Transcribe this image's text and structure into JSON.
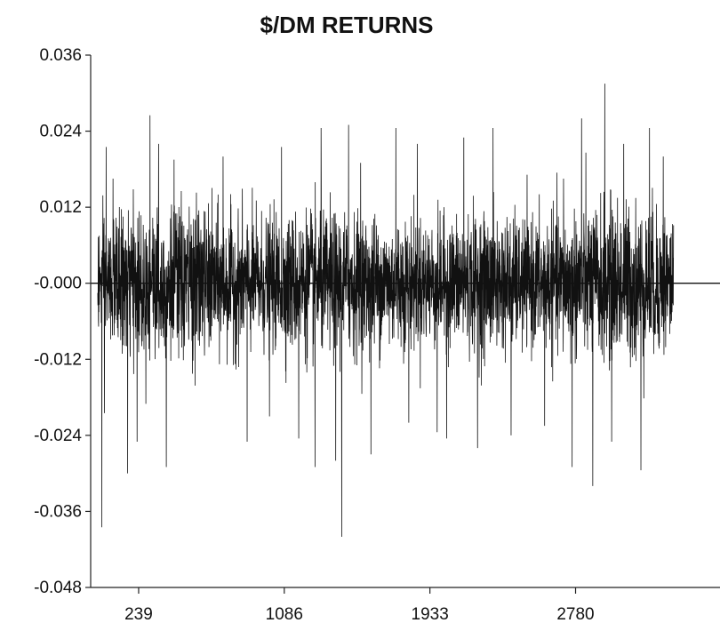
{
  "chart_data": {
    "type": "line",
    "title": "$/DM RETURNS",
    "xlabel": "",
    "ylabel": "",
    "x_ticks": [
      239,
      1086,
      1933,
      2780
    ],
    "x_tick_labels": [
      "239",
      "1086",
      "1933",
      "2780"
    ],
    "y_ticks": [
      0.036,
      0.024,
      0.012,
      0.0,
      -0.012,
      -0.024,
      -0.036,
      -0.048
    ],
    "y_tick_labels": [
      "0.036",
      "0.024",
      "0.012",
      "-0.000",
      "-0.012",
      "-0.024",
      "-0.036",
      "-0.048"
    ],
    "xlim": [
      -40,
      3620
    ],
    "ylim": [
      -0.048,
      0.036
    ],
    "grid": false,
    "legend": "none",
    "series": [
      {
        "n_observations": 3350,
        "x_start": 1,
        "x_end": 3350,
        "volatility_profile": [
          [
            1,
            0.0045
          ],
          [
            250,
            0.0058
          ],
          [
            500,
            0.0062
          ],
          [
            750,
            0.0052
          ],
          [
            1000,
            0.005
          ],
          [
            1250,
            0.0056
          ],
          [
            1500,
            0.0053
          ],
          [
            1750,
            0.005
          ],
          [
            2000,
            0.0048
          ],
          [
            2250,
            0.0054
          ],
          [
            2500,
            0.0048
          ],
          [
            2750,
            0.0055
          ],
          [
            3000,
            0.0062
          ],
          [
            3250,
            0.0058
          ],
          [
            3350,
            0.0055
          ]
        ],
        "notable_spikes": [
          {
            "x": 25,
            "y": -0.0385
          },
          {
            "x": 40,
            "y": -0.0205
          },
          {
            "x": 50,
            "y": 0.0215
          },
          {
            "x": 90,
            "y": 0.0165
          },
          {
            "x": 175,
            "y": -0.03
          },
          {
            "x": 230,
            "y": -0.025
          },
          {
            "x": 305,
            "y": 0.0265
          },
          {
            "x": 355,
            "y": 0.022
          },
          {
            "x": 400,
            "y": -0.029
          },
          {
            "x": 445,
            "y": 0.0195
          },
          {
            "x": 730,
            "y": 0.02
          },
          {
            "x": 870,
            "y": -0.025
          },
          {
            "x": 1000,
            "y": -0.021
          },
          {
            "x": 1070,
            "y": 0.0215
          },
          {
            "x": 1170,
            "y": -0.0245
          },
          {
            "x": 1265,
            "y": -0.029
          },
          {
            "x": 1300,
            "y": 0.0245
          },
          {
            "x": 1385,
            "y": -0.028
          },
          {
            "x": 1420,
            "y": -0.04
          },
          {
            "x": 1460,
            "y": 0.025
          },
          {
            "x": 1530,
            "y": 0.019
          },
          {
            "x": 1590,
            "y": -0.027
          },
          {
            "x": 1735,
            "y": 0.0245
          },
          {
            "x": 1810,
            "y": -0.022
          },
          {
            "x": 1860,
            "y": 0.022
          },
          {
            "x": 1975,
            "y": -0.0235
          },
          {
            "x": 2030,
            "y": -0.0245
          },
          {
            "x": 2130,
            "y": 0.023
          },
          {
            "x": 2210,
            "y": -0.026
          },
          {
            "x": 2300,
            "y": 0.0245
          },
          {
            "x": 2405,
            "y": -0.024
          },
          {
            "x": 2600,
            "y": -0.0225
          },
          {
            "x": 2710,
            "y": 0.0165
          },
          {
            "x": 2760,
            "y": -0.029
          },
          {
            "x": 2815,
            "y": 0.026
          },
          {
            "x": 2880,
            "y": -0.032
          },
          {
            "x": 2950,
            "y": 0.0315
          },
          {
            "x": 2990,
            "y": -0.025
          },
          {
            "x": 3060,
            "y": 0.022
          },
          {
            "x": 3160,
            "y": -0.0295
          },
          {
            "x": 3210,
            "y": 0.0245
          },
          {
            "x": 3290,
            "y": 0.02
          }
        ]
      }
    ]
  }
}
